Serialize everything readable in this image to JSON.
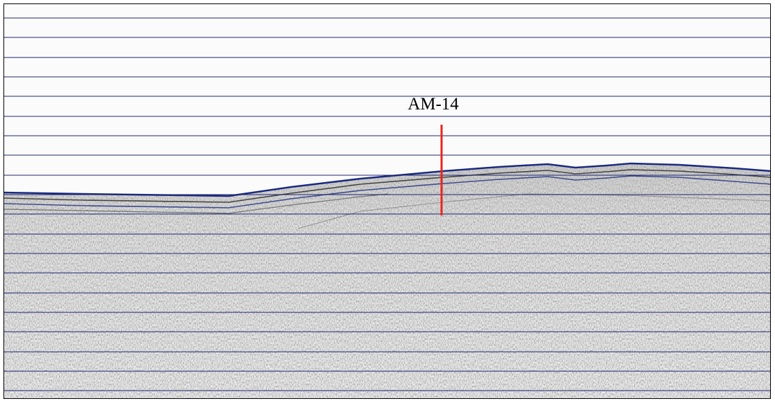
{
  "label": "AM-14"
}
